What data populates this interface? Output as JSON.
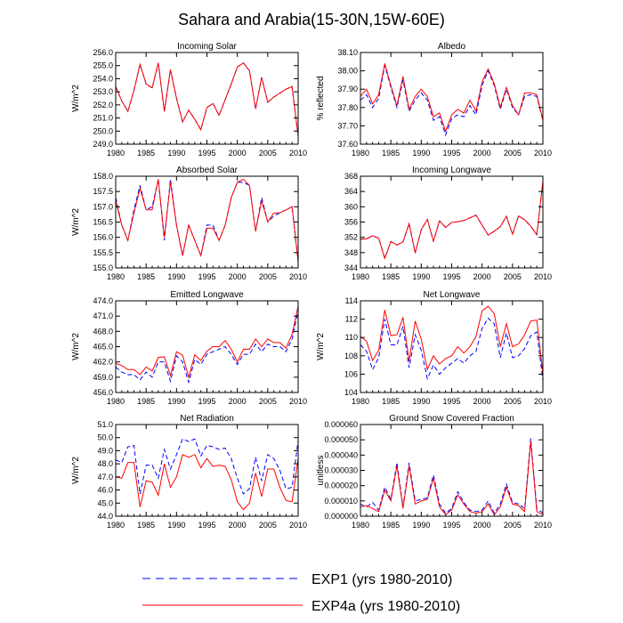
{
  "figure": {
    "title": "Sahara and Arabia(15-30N,15W-60E)",
    "legend": [
      {
        "label": "EXP1 (yrs 1980-2010)",
        "color": "#0000ff",
        "style": "dashed"
      },
      {
        "label": "EXP4a (yrs 1980-2010)",
        "color": "#ff0000",
        "style": "solid"
      }
    ]
  },
  "chart_data": [
    {
      "type": "line",
      "title": "Incoming Solar",
      "ylabel": "W/m^2",
      "xlim": [
        1980,
        2010
      ],
      "ylim": [
        249.0,
        256.0
      ],
      "yticks": [
        "249.0",
        "250.0",
        "251.0",
        "252.0",
        "253.0",
        "254.0",
        "255.0",
        "256.0"
      ],
      "xticks": [
        "1980",
        "1985",
        "1990",
        "1995",
        "2000",
        "2005",
        "2010"
      ],
      "x": [
        1980,
        1981,
        1982,
        1983,
        1984,
        1985,
        1986,
        1987,
        1988,
        1989,
        1990,
        1991,
        1992,
        1993,
        1994,
        1995,
        1996,
        1997,
        1998,
        1999,
        2000,
        2001,
        2002,
        2003,
        2004,
        2005,
        2006,
        2007,
        2008,
        2009,
        2010
      ],
      "series": [
        {
          "name": "EXP1 (yrs 1980-2010)",
          "values": [
            253.4,
            252.3,
            251.5,
            253.1,
            255.1,
            253.6,
            253.3,
            255.2,
            251.5,
            254.7,
            252.5,
            250.7,
            251.6,
            250.9,
            250.1,
            251.8,
            252.1,
            251.2,
            252.4,
            253.6,
            254.9,
            255.2,
            254.6,
            251.7,
            254.1,
            252.2,
            252.6,
            252.9,
            253.2,
            253.4,
            249.6
          ]
        },
        {
          "name": "EXP4a (yrs 1980-2010)",
          "values": [
            253.4,
            252.3,
            251.5,
            253.1,
            255.1,
            253.6,
            253.3,
            255.2,
            251.5,
            254.7,
            252.5,
            250.7,
            251.6,
            250.9,
            250.1,
            251.8,
            252.1,
            251.2,
            252.4,
            253.6,
            254.9,
            255.2,
            254.6,
            251.7,
            254.1,
            252.2,
            252.6,
            252.9,
            253.2,
            253.4,
            249.6
          ]
        }
      ]
    },
    {
      "type": "line",
      "title": "Albedo",
      "ylabel": "% reflected",
      "xlim": [
        1980,
        2010
      ],
      "ylim": [
        37.6,
        38.1
      ],
      "yticks": [
        "37.60",
        "37.70",
        "37.80",
        "37.90",
        "38.00",
        "38.10"
      ],
      "xticks": [
        "1980",
        "1985",
        "1990",
        "1995",
        "2000",
        "2005",
        "2010"
      ],
      "x": [
        1980,
        1981,
        1982,
        1983,
        1984,
        1985,
        1986,
        1987,
        1988,
        1989,
        1990,
        1991,
        1992,
        1993,
        1994,
        1995,
        1996,
        1997,
        1998,
        1999,
        2000,
        2001,
        2002,
        2003,
        2004,
        2005,
        2006,
        2007,
        2008,
        2009,
        2010
      ],
      "series": [
        {
          "name": "EXP1 (yrs 1980-2010)",
          "values": [
            37.84,
            37.87,
            37.8,
            37.85,
            38.03,
            37.91,
            37.8,
            37.95,
            37.78,
            37.84,
            37.88,
            37.84,
            37.73,
            37.75,
            37.65,
            37.74,
            37.76,
            37.75,
            37.81,
            37.76,
            37.92,
            38.0,
            37.92,
            37.79,
            37.9,
            37.8,
            37.76,
            37.86,
            37.87,
            37.86,
            37.73
          ]
        },
        {
          "name": "EXP4a (yrs 1980-2010)",
          "values": [
            37.86,
            37.9,
            37.82,
            37.87,
            38.04,
            37.92,
            37.81,
            37.97,
            37.79,
            37.86,
            37.9,
            37.86,
            37.75,
            37.77,
            37.67,
            37.76,
            37.79,
            37.77,
            37.84,
            37.78,
            37.94,
            38.01,
            37.93,
            37.8,
            37.91,
            37.81,
            37.76,
            37.88,
            37.88,
            37.87,
            37.73
          ]
        }
      ]
    },
    {
      "type": "line",
      "title": "Absorbed Solar",
      "ylabel": "W/m^2",
      "xlim": [
        1980,
        2010
      ],
      "ylim": [
        155.0,
        158.0
      ],
      "yticks": [
        "155.0",
        "155.5",
        "156.0",
        "156.5",
        "157.0",
        "157.5",
        "158.0"
      ],
      "xticks": [
        "1980",
        "1985",
        "1990",
        "1995",
        "2000",
        "2005",
        "2010"
      ],
      "x": [
        1980,
        1981,
        1982,
        1983,
        1984,
        1985,
        1986,
        1987,
        1988,
        1989,
        1990,
        1991,
        1992,
        1993,
        1994,
        1995,
        1996,
        1997,
        1998,
        1999,
        2000,
        2001,
        2002,
        2003,
        2004,
        2005,
        2006,
        2007,
        2008,
        2009,
        2010
      ],
      "series": [
        {
          "name": "EXP1 (yrs 1980-2010)",
          "values": [
            157.3,
            156.4,
            155.9,
            156.9,
            157.7,
            156.9,
            157.0,
            157.9,
            155.9,
            157.9,
            156.4,
            155.4,
            156.4,
            155.9,
            155.4,
            156.4,
            156.4,
            155.9,
            156.4,
            157.3,
            157.8,
            157.8,
            157.7,
            156.2,
            157.3,
            156.5,
            156.7,
            156.8,
            156.9,
            157.0,
            155.2
          ]
        },
        {
          "name": "EXP4a (yrs 1980-2010)",
          "values": [
            157.2,
            156.4,
            155.9,
            156.8,
            157.6,
            156.9,
            156.9,
            157.9,
            156.0,
            157.8,
            156.4,
            155.4,
            156.4,
            155.9,
            155.4,
            156.3,
            156.3,
            155.9,
            156.4,
            157.3,
            157.8,
            157.9,
            157.7,
            156.2,
            157.2,
            156.5,
            156.8,
            156.8,
            156.9,
            157.0,
            155.2
          ]
        }
      ]
    },
    {
      "type": "line",
      "title": "Incoming Longwave",
      "ylabel": "",
      "xlim": [
        1980,
        2010
      ],
      "ylim": [
        344,
        368
      ],
      "yticks": [
        "344",
        "348",
        "352",
        "356",
        "360",
        "364",
        "368"
      ],
      "xticks": [
        "1980",
        "1985",
        "1990",
        "1995",
        "2000",
        "2005",
        "2010"
      ],
      "x": [
        1980,
        1981,
        1982,
        1983,
        1984,
        1985,
        1986,
        1987,
        1988,
        1989,
        1990,
        1991,
        1992,
        1993,
        1994,
        1995,
        1996,
        1997,
        1998,
        1999,
        2000,
        2001,
        2002,
        2003,
        2004,
        2005,
        2006,
        2007,
        2008,
        2009,
        2010
      ],
      "series": [
        {
          "name": "EXP1 (yrs 1980-2010)",
          "values": [
            351.5,
            351.6,
            352.4,
            351.8,
            346.5,
            350.9,
            350.0,
            350.8,
            355.6,
            347.9,
            354.0,
            356.7,
            351.0,
            356.3,
            354.6,
            355.9,
            356.1,
            356.4,
            357.1,
            357.8,
            355.2,
            352.6,
            353.6,
            354.8,
            357.5,
            352.8,
            357.6,
            356.6,
            354.9,
            352.7,
            366.5
          ]
        },
        {
          "name": "EXP4a (yrs 1980-2010)",
          "values": [
            351.5,
            351.6,
            352.4,
            351.8,
            346.5,
            350.9,
            350.0,
            350.8,
            355.6,
            347.9,
            354.0,
            356.7,
            351.0,
            356.3,
            354.6,
            355.9,
            356.1,
            356.4,
            357.1,
            357.8,
            355.2,
            352.6,
            353.6,
            354.8,
            357.5,
            352.8,
            357.6,
            356.6,
            354.9,
            352.7,
            366.8
          ]
        }
      ]
    },
    {
      "type": "line",
      "title": "Emitted Longwave",
      "ylabel": "W/m^2",
      "xlim": [
        1980,
        2010
      ],
      "ylim": [
        456.0,
        474.0
      ],
      "yticks": [
        "456.0",
        "459.0",
        "462.0",
        "465.0",
        "468.0",
        "471.0",
        "474.0"
      ],
      "xticks": [
        "1980",
        "1985",
        "1990",
        "1995",
        "2000",
        "2005",
        "2010"
      ],
      "x": [
        1980,
        1981,
        1982,
        1983,
        1984,
        1985,
        1986,
        1987,
        1988,
        1989,
        1990,
        1991,
        1992,
        1993,
        1994,
        1995,
        1996,
        1997,
        1998,
        1999,
        2000,
        2001,
        2002,
        2003,
        2004,
        2005,
        2006,
        2007,
        2008,
        2009,
        2010
      ],
      "series": [
        {
          "name": "EXP1 (yrs 1980-2010)",
          "values": [
            461.0,
            460.0,
            459.5,
            459.5,
            458.5,
            460.0,
            459.0,
            462.0,
            462.0,
            458.2,
            463.2,
            462.0,
            458.0,
            462.5,
            461.5,
            463.5,
            464.0,
            464.5,
            465.0,
            463.5,
            461.5,
            463.5,
            463.5,
            465.5,
            464.0,
            465.5,
            465.0,
            465.0,
            464.0,
            466.5,
            472.0
          ]
        },
        {
          "name": "EXP4a (yrs 1980-2010)",
          "values": [
            461.7,
            461.3,
            460.5,
            460.5,
            459.5,
            461.0,
            460.2,
            462.9,
            463.0,
            459.3,
            464.0,
            463.3,
            459.0,
            463.4,
            462.3,
            464.1,
            465.0,
            465.0,
            466.2,
            464.5,
            462.0,
            464.5,
            464.5,
            466.5,
            465.0,
            466.5,
            465.8,
            465.8,
            464.7,
            467.4,
            473.0
          ]
        }
      ]
    },
    {
      "type": "line",
      "title": "Net Longwave",
      "ylabel": "W/m^2",
      "xlim": [
        1980,
        2010
      ],
      "ylim": [
        104,
        114
      ],
      "yticks": [
        "104",
        "106",
        "108",
        "110",
        "112",
        "114"
      ],
      "xticks": [
        "1980",
        "1985",
        "1990",
        "1995",
        "2000",
        "2005",
        "2010"
      ],
      "x": [
        1980,
        1981,
        1982,
        1983,
        1984,
        1985,
        1986,
        1987,
        1988,
        1989,
        1990,
        1991,
        1992,
        1993,
        1994,
        1995,
        1996,
        1997,
        1998,
        1999,
        2000,
        2001,
        2002,
        2003,
        2004,
        2005,
        2006,
        2007,
        2008,
        2009,
        2010
      ],
      "series": [
        {
          "name": "EXP1 (yrs 1980-2010)",
          "values": [
            109.2,
            108.5,
            106.5,
            107.8,
            112.0,
            109.2,
            109.2,
            111.2,
            106.7,
            110.3,
            108.6,
            105.5,
            107.0,
            106.0,
            106.7,
            107.2,
            107.7,
            107.2,
            108.0,
            108.5,
            111.0,
            112.1,
            111.5,
            107.8,
            110.5,
            107.8,
            108.0,
            108.8,
            110.2,
            110.6,
            105.3
          ]
        },
        {
          "name": "EXP4a (yrs 1980-2010)",
          "values": [
            110.1,
            109.6,
            107.5,
            108.6,
            113.0,
            110.2,
            110.3,
            112.2,
            107.4,
            111.8,
            109.8,
            106.5,
            108.0,
            107.1,
            107.7,
            108.0,
            109.0,
            108.3,
            109.0,
            110.1,
            112.9,
            113.4,
            112.6,
            109.0,
            111.5,
            109.0,
            109.3,
            110.3,
            111.8,
            111.9,
            106.0
          ]
        }
      ]
    },
    {
      "type": "line",
      "title": "Net Radiation",
      "ylabel": "W/m^2",
      "xlim": [
        1980,
        2010
      ],
      "ylim": [
        44.0,
        51.0
      ],
      "yticks": [
        "44.0",
        "45.0",
        "46.0",
        "47.0",
        "48.0",
        "49.0",
        "50.0",
        "51.0"
      ],
      "xticks": [
        "1980",
        "1985",
        "1990",
        "1995",
        "2000",
        "2005",
        "2010"
      ],
      "x": [
        1980,
        1981,
        1982,
        1983,
        1984,
        1985,
        1986,
        1987,
        1988,
        1989,
        1990,
        1991,
        1992,
        1993,
        1994,
        1995,
        1996,
        1997,
        1998,
        1999,
        2000,
        2001,
        2002,
        2003,
        2004,
        2005,
        2006,
        2007,
        2008,
        2009,
        2010
      ],
      "series": [
        {
          "name": "EXP1 (yrs 1980-2010)",
          "values": [
            48.3,
            48.1,
            49.3,
            49.4,
            45.7,
            47.9,
            47.9,
            46.9,
            49.1,
            47.6,
            48.7,
            49.9,
            49.7,
            49.9,
            48.6,
            49.4,
            49.3,
            49.1,
            49.2,
            48.4,
            46.9,
            45.7,
            46.1,
            48.5,
            46.7,
            48.7,
            48.4,
            47.5,
            46.1,
            46.2,
            49.8
          ]
        },
        {
          "name": "EXP4a (yrs 1980-2010)",
          "values": [
            47.0,
            46.9,
            48.1,
            48.1,
            44.7,
            46.7,
            46.6,
            45.6,
            48.0,
            46.2,
            47.0,
            48.7,
            48.5,
            48.7,
            47.7,
            48.4,
            47.8,
            47.9,
            47.8,
            46.8,
            45.1,
            44.5,
            45.0,
            47.3,
            45.5,
            47.6,
            47.6,
            46.2,
            45.2,
            45.1,
            48.4
          ]
        }
      ]
    },
    {
      "type": "line",
      "title": "Ground Snow Covered Fraction",
      "ylabel": "unitless",
      "xlim": [
        1980,
        2010
      ],
      "ylim": [
        0.0,
        6e-05
      ],
      "yticks": [
        "0.000000",
        "0.000010",
        "0.000020",
        "0.000030",
        "0.000040",
        "0.000050",
        "0.000060"
      ],
      "xticks": [
        "1980",
        "1985",
        "1990",
        "1995",
        "2000",
        "2005",
        "2010"
      ],
      "x": [
        1980,
        1981,
        1982,
        1983,
        1984,
        1985,
        1986,
        1987,
        1988,
        1989,
        1990,
        1991,
        1992,
        1993,
        1994,
        1995,
        1996,
        1997,
        1998,
        1999,
        2000,
        2001,
        2002,
        2003,
        2004,
        2005,
        2006,
        2007,
        2008,
        2009,
        2010
      ],
      "series": [
        {
          "name": "EXP1 (yrs 1980-2010)",
          "values": [
            8e-06,
            6e-06,
            9e-06,
            4e-06,
            1.9e-05,
            1.1e-05,
            3.5e-05,
            6e-06,
            3.5e-05,
            1e-05,
            1.1e-05,
            1.2e-05,
            2.7e-05,
            8e-06,
            2e-06,
            5e-06,
            1.6e-05,
            9e-06,
            4e-06,
            3e-06,
            4e-06,
            1e-05,
            2e-06,
            8e-06,
            2.1e-05,
            9e-06,
            8e-06,
            5e-06,
            5.1e-05,
            5e-06,
            2e-06
          ]
        },
        {
          "name": "EXP4a (yrs 1980-2010)",
          "values": [
            6e-06,
            7e-06,
            5e-06,
            3e-06,
            1.7e-05,
            1e-05,
            3.3e-05,
            5e-06,
            3.3e-05,
            8e-06,
            1e-05,
            1.1e-05,
            2.5e-05,
            6e-06,
            1e-06,
            4e-06,
            1.4e-05,
            8e-06,
            3e-06,
            2e-06,
            3e-06,
            8e-06,
            1e-06,
            6e-06,
            1.9e-05,
            8e-06,
            7e-06,
            3e-06,
            4.9e-05,
            3e-06,
            1e-06
          ]
        }
      ]
    }
  ]
}
